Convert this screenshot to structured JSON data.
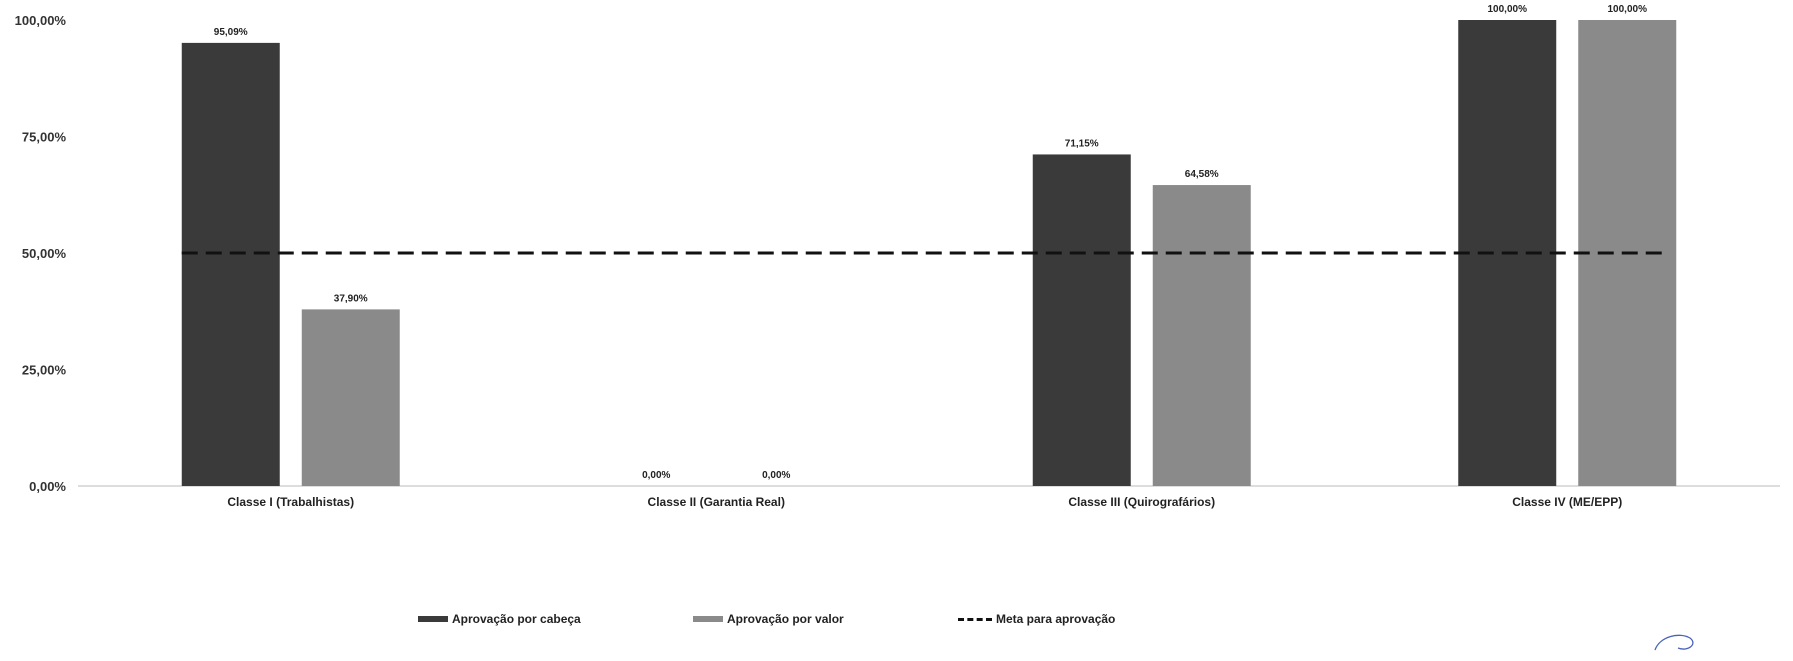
{
  "chart_data": {
    "type": "bar",
    "categories": [
      "Classe I (Trabalhistas)",
      "Classe II (Garantia Real)",
      "Classe III (Quirografários)",
      "Classe IV (ME/EPP)"
    ],
    "series": [
      {
        "name": "Aprovação por cabeça",
        "values": [
          95.09,
          0.0,
          71.15,
          100.0
        ],
        "labels": [
          "95,09%",
          "0,00%",
          "71,15%",
          "100,00%"
        ],
        "color": "#3a3a3a"
      },
      {
        "name": "Aprovação por valor",
        "values": [
          37.9,
          0.0,
          64.58,
          100.0
        ],
        "labels": [
          "37,90%",
          "0,00%",
          "64,58%",
          "100,00%"
        ],
        "color": "#8a8a8a"
      }
    ],
    "target_line": {
      "name": "Meta para aprovação",
      "value": 50,
      "style": "dashed",
      "color": "#111111"
    },
    "ylim": [
      0,
      100
    ],
    "yticks": [
      0,
      25,
      50,
      75,
      100
    ],
    "ytick_labels": [
      "0,00%",
      "25,00%",
      "50,00%",
      "75,00%",
      "100,00%"
    ],
    "xlabel": "",
    "ylabel": "",
    "grid": false,
    "legend_position": "bottom-center"
  }
}
